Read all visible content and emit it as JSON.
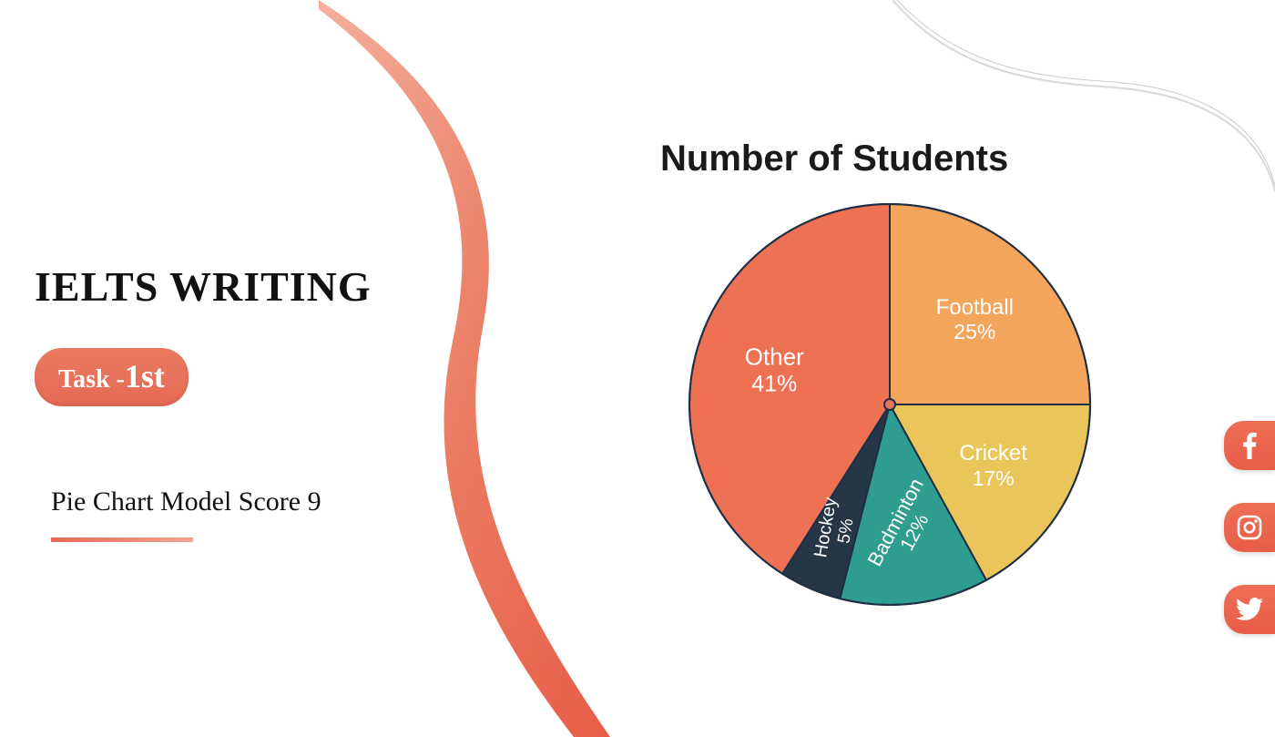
{
  "heading": "IELTS WRITING",
  "task_badge": {
    "prefix": "Task -",
    "num": "1st"
  },
  "subtitle": "Pie Chart Model Score 9",
  "underline_gradient": [
    "#e86a54",
    "#f2a390"
  ],
  "chart": {
    "type": "pie",
    "title": "Number of Students",
    "title_fontsize": 40,
    "title_color": "#1a1a1a",
    "diameter": 444,
    "start_angle_deg": -90,
    "direction": "clockwise",
    "border_color": "#1e2e45",
    "border_width": 2,
    "center_dot": {
      "radius": 6,
      "fill": "#e8755d",
      "stroke": "#1e2e45",
      "stroke_width": 2
    },
    "slices": [
      {
        "label": "Football",
        "value": 25,
        "color": "#f3a55c",
        "label_color": "#ffffff",
        "label_fontsize": 24,
        "label_rotate": 0
      },
      {
        "label": "Cricket",
        "value": 17,
        "color": "#eac65a",
        "label_color": "#ffffff",
        "label_fontsize": 24,
        "label_rotate": 0
      },
      {
        "label": "Badminton",
        "value": 12,
        "color": "#2f9d8f",
        "label_color": "#ffffff",
        "label_fontsize": 22,
        "label_rotate": -62
      },
      {
        "label": "Hockey",
        "value": 5,
        "color": "#253647",
        "label_color": "#ffffff",
        "label_fontsize": 20,
        "label_rotate": -80
      },
      {
        "label": "Other",
        "value": 41,
        "color": "#ee7153",
        "label_color": "#ffffff",
        "label_fontsize": 26,
        "label_rotate": 0
      }
    ],
    "label_format": "{label}\n{value}%"
  },
  "decor": {
    "left_curve_gradient": [
      "#f4b09d",
      "#e85c48"
    ],
    "top_right_curve_stroke": "#e3e3e3"
  },
  "social": [
    {
      "name": "facebook",
      "bg": "#ea6650"
    },
    {
      "name": "instagram",
      "bg": "#ea6650"
    },
    {
      "name": "twitter",
      "bg": "#ea6650"
    }
  ]
}
